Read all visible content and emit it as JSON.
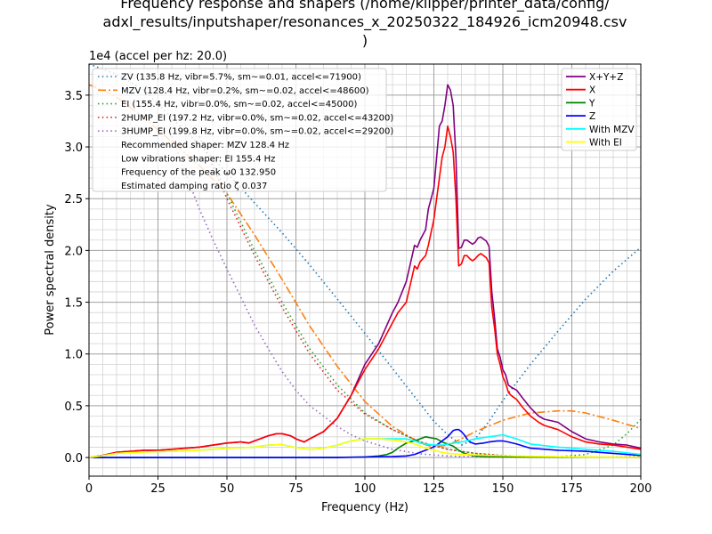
{
  "chart_data": {
    "type": "line",
    "title_lines": [
      "Frequency response and shapers (/home/klipper/printer_data/config/",
      "adxl_results/inputshaper/resonances_x_20250322_184926_icm20948.csv",
      ")"
    ],
    "xlabel": "Frequency (Hz)",
    "ylabel": "Power spectral density",
    "ylabel_offset": "1e4",
    "ylabel_offset_note": "(accel per hz: 20.0)",
    "xlim": [
      0,
      200
    ],
    "ylim": [
      -1800,
      38000
    ],
    "grid": true,
    "xticks": [
      0,
      25,
      50,
      75,
      100,
      125,
      150,
      175,
      200
    ],
    "xtick_labels": [
      "0",
      "25",
      "50",
      "75",
      "100",
      "125",
      "150",
      "175",
      "200"
    ],
    "yticks": [
      0,
      5000,
      10000,
      15000,
      20000,
      25000,
      30000,
      35000
    ],
    "ytick_labels": [
      "0.0",
      "0.5",
      "1.0",
      "1.5",
      "2.0",
      "2.5",
      "3.0",
      "3.5"
    ],
    "psd_series": [
      {
        "name": "X+Y+Z",
        "color": "#800080",
        "x": [
          0,
          5,
          10,
          15,
          20,
          25,
          30,
          35,
          40,
          45,
          50,
          55,
          58,
          60,
          65,
          68,
          70,
          73,
          75,
          78,
          80,
          85,
          90,
          95,
          100,
          105,
          110,
          112,
          115,
          118,
          119,
          120,
          122,
          123,
          125,
          127,
          128,
          129,
          130,
          131,
          132,
          133,
          134,
          135,
          136,
          137,
          138,
          139,
          140,
          141,
          142,
          143,
          144,
          145,
          146,
          147,
          148,
          149,
          150,
          151,
          152,
          153,
          155,
          157,
          160,
          163,
          165,
          170,
          175,
          180,
          185,
          190,
          195,
          200
        ],
        "y": [
          0,
          200,
          500,
          600,
          700,
          700,
          800,
          900,
          1000,
          1200,
          1400,
          1500,
          1400,
          1600,
          2100,
          2300,
          2300,
          2100,
          1800,
          1500,
          1800,
          2500,
          3800,
          6000,
          9000,
          11000,
          14000,
          15000,
          17000,
          20500,
          20300,
          21000,
          22000,
          24000,
          26000,
          32000,
          32500,
          34000,
          36000,
          35500,
          34000,
          29000,
          20200,
          20300,
          21000,
          21000,
          20800,
          20600,
          20800,
          21200,
          21300,
          21100,
          20900,
          20400,
          16000,
          13500,
          10500,
          9700,
          8500,
          8000,
          7000,
          6800,
          6500,
          5800,
          4800,
          4000,
          3700,
          3400,
          2500,
          1800,
          1500,
          1300,
          1200,
          900
        ]
      },
      {
        "name": "X",
        "color": "#ff0000",
        "x": [
          0,
          5,
          10,
          15,
          20,
          25,
          30,
          35,
          40,
          45,
          50,
          55,
          58,
          60,
          65,
          68,
          70,
          73,
          75,
          78,
          80,
          85,
          90,
          95,
          100,
          105,
          110,
          112,
          115,
          118,
          119,
          120,
          122,
          123,
          125,
          127,
          128,
          129,
          130,
          131,
          132,
          133,
          134,
          135,
          136,
          137,
          138,
          139,
          140,
          141,
          142,
          143,
          144,
          145,
          146,
          147,
          148,
          149,
          150,
          151,
          152,
          153,
          155,
          157,
          160,
          163,
          165,
          170,
          175,
          180,
          185,
          190,
          195,
          200
        ],
        "y": [
          0,
          200,
          500,
          600,
          700,
          700,
          800,
          900,
          1000,
          1200,
          1400,
          1500,
          1400,
          1600,
          2100,
          2300,
          2300,
          2100,
          1800,
          1500,
          1800,
          2500,
          3800,
          6000,
          8500,
          10500,
          13000,
          14000,
          15000,
          18500,
          18200,
          18900,
          19500,
          20500,
          23000,
          27000,
          29000,
          30000,
          32000,
          31000,
          29500,
          25000,
          18500,
          18700,
          19500,
          19500,
          19200,
          19000,
          19200,
          19500,
          19700,
          19500,
          19300,
          18800,
          14500,
          12500,
          10000,
          9000,
          7800,
          7200,
          6300,
          6000,
          5600,
          4900,
          4000,
          3400,
          3100,
          2700,
          2000,
          1500,
          1300,
          1200,
          1000,
          800
        ]
      },
      {
        "name": "Y",
        "color": "#008000",
        "x": [
          0,
          10,
          20,
          30,
          40,
          50,
          60,
          70,
          80,
          90,
          95,
          100,
          105,
          108,
          110,
          112,
          115,
          118,
          120,
          122,
          124,
          126,
          128,
          130,
          132,
          134,
          136,
          138,
          140,
          145,
          150,
          160,
          170,
          180,
          190,
          200
        ],
        "y": [
          0,
          0,
          0,
          0,
          0,
          0,
          0,
          0,
          0,
          10,
          30,
          60,
          150,
          300,
          500,
          900,
          1400,
          1600,
          1800,
          2000,
          1900,
          1800,
          1500,
          1300,
          1100,
          700,
          400,
          250,
          150,
          100,
          80,
          60,
          40,
          30,
          20,
          10
        ]
      },
      {
        "name": "Z",
        "color": "#0000ff",
        "x": [
          0,
          10,
          20,
          30,
          40,
          50,
          60,
          70,
          80,
          90,
          100,
          105,
          110,
          115,
          118,
          120,
          122,
          124,
          126,
          127,
          128,
          130,
          132,
          133,
          134,
          135,
          136,
          137,
          138,
          140,
          143,
          145,
          148,
          150,
          152,
          155,
          160,
          170,
          180,
          190,
          200
        ],
        "y": [
          0,
          0,
          0,
          0,
          0,
          0,
          0,
          0,
          0,
          0,
          50,
          80,
          100,
          150,
          300,
          500,
          700,
          900,
          1200,
          1400,
          1600,
          2000,
          2600,
          2700,
          2700,
          2500,
          2200,
          1800,
          1500,
          1300,
          1400,
          1500,
          1600,
          1600,
          1500,
          1300,
          900,
          700,
          600,
          400,
          200
        ]
      },
      {
        "name": "With MZV",
        "color": "#00ffff",
        "x": [
          0,
          5,
          10,
          15,
          20,
          25,
          30,
          35,
          40,
          45,
          50,
          55,
          60,
          65,
          70,
          75,
          80,
          85,
          90,
          95,
          100,
          105,
          110,
          115,
          118,
          120,
          122,
          125,
          128,
          130,
          135,
          140,
          145,
          150,
          155,
          160,
          170,
          180,
          190,
          200
        ],
        "y": [
          0,
          180,
          400,
          480,
          520,
          560,
          600,
          650,
          700,
          800,
          900,
          950,
          1000,
          1200,
          1250,
          950,
          800,
          900,
          1200,
          1600,
          1800,
          1800,
          1800,
          1800,
          1600,
          1400,
          1300,
          1200,
          1200,
          1300,
          1500,
          1800,
          2000,
          2200,
          1800,
          1300,
          1000,
          800,
          600,
          300
        ]
      },
      {
        "name": "With EI",
        "color": "#ffff00",
        "x": [
          0,
          5,
          10,
          15,
          20,
          25,
          30,
          35,
          40,
          45,
          50,
          55,
          60,
          65,
          70,
          75,
          80,
          85,
          90,
          95,
          100,
          105,
          110,
          115,
          118,
          120,
          122,
          125,
          128,
          130,
          135,
          140,
          145,
          150,
          155,
          160,
          170,
          180,
          190,
          200
        ],
        "y": [
          0,
          180,
          400,
          480,
          520,
          560,
          600,
          650,
          700,
          800,
          900,
          950,
          1000,
          1200,
          1250,
          950,
          800,
          900,
          1200,
          1600,
          1800,
          1800,
          1700,
          1500,
          1300,
          1100,
          900,
          700,
          500,
          400,
          300,
          250,
          200,
          180,
          150,
          120,
          80,
          50,
          30,
          20
        ]
      }
    ],
    "shaper_series": [
      {
        "name": "ZV (135.8 Hz, vibr=5.7%, sm~=0.01, accel<=71900)",
        "color": "#1f77b4",
        "dash": "dotted",
        "x": [
          0,
          10,
          20,
          30,
          40,
          50,
          60,
          70,
          80,
          90,
          100,
          110,
          120,
          125,
          130,
          135,
          140,
          145,
          150,
          160,
          170,
          180,
          190,
          200
        ],
        "y": [
          38000,
          37000,
          35500,
          32800,
          30200,
          27500,
          24600,
          21700,
          18600,
          15300,
          12000,
          8600,
          5200,
          3500,
          2200,
          1200,
          1800,
          3500,
          5500,
          9000,
          12200,
          15300,
          18000,
          20300
        ]
      },
      {
        "name": "MZV (128.4 Hz, vibr=0.2%, sm~=0.02, accel<=48600)",
        "color": "#ff7f0e",
        "dash": "dashdot",
        "x": [
          0,
          5,
          10,
          20,
          30,
          40,
          50,
          60,
          70,
          80,
          90,
          100,
          110,
          120,
          125,
          130,
          135,
          140,
          150,
          160,
          170,
          175,
          180,
          190,
          200
        ],
        "y": [
          36000,
          35500,
          34800,
          32800,
          30500,
          28200,
          25500,
          21500,
          17200,
          12700,
          8800,
          5400,
          3000,
          1400,
          1000,
          1200,
          1800,
          2500,
          3600,
          4300,
          4500,
          4500,
          4300,
          3600,
          2800
        ]
      },
      {
        "name": "EI (155.4 Hz, vibr=0.0%, sm~=0.02, accel<=45000)",
        "color": "#2ca02c",
        "dash": "dotted",
        "x": [
          40,
          50,
          60,
          70,
          80,
          90,
          100,
          110,
          120,
          130,
          140,
          150,
          160,
          170,
          180,
          190,
          195,
          200
        ],
        "y": [
          31000,
          25500,
          20000,
          15000,
          10500,
          7000,
          4300,
          2700,
          1500,
          800,
          400,
          150,
          50,
          60,
          300,
          1200,
          2300,
          3700
        ]
      },
      {
        "name": "2HUMP_EI (197.2 Hz, vibr=0.0%, sm~=0.02, accel<=43200)",
        "color": "#d62728",
        "dash": "dotted",
        "x": [
          40,
          50,
          60,
          70,
          80,
          90,
          100,
          110,
          120,
          130,
          140,
          150,
          160,
          170,
          180,
          190,
          200
        ],
        "y": [
          31000,
          25000,
          19500,
          14500,
          10000,
          6500,
          4200,
          2700,
          1500,
          800,
          400,
          200,
          80,
          40,
          30,
          40,
          80
        ]
      },
      {
        "name": "3HUMP_EI (199.8 Hz, vibr=0.0%, sm~=0.02, accel<=29200)",
        "color": "#9467bd",
        "dash": "dotted",
        "x": [
          30,
          35,
          40,
          45,
          50,
          55,
          60,
          65,
          70,
          75,
          80,
          85,
          90,
          95,
          100,
          110,
          120,
          130,
          140,
          150,
          160,
          170,
          180,
          190,
          200
        ],
        "y": [
          31000,
          27500,
          24000,
          21000,
          18200,
          15500,
          12800,
          10500,
          8300,
          6500,
          5000,
          4000,
          3000,
          2200,
          1600,
          800,
          350,
          150,
          60,
          30,
          20,
          20,
          30,
          40,
          60
        ]
      }
    ],
    "legend_left_extra": [
      "Recommended shaper: MZV 128.4 Hz",
      "Low vibrations shaper: EI 155.4 Hz",
      "Frequency of the peak ω0 132.950",
      "Estimated damping ratio ζ 0.037"
    ],
    "legend_left_placement": "upper-left",
    "legend_right_placement": "upper-right"
  }
}
